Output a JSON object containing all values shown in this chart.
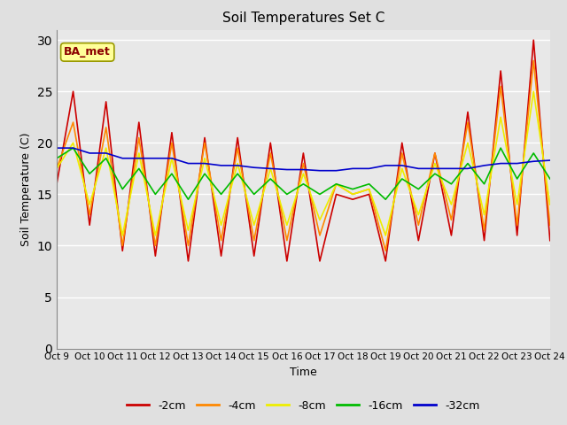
{
  "title": "Soil Temperatures Set C",
  "xlabel": "Time",
  "ylabel": "Soil Temperature (C)",
  "annotation": "BA_met",
  "ylim": [
    0,
    31
  ],
  "yticks": [
    0,
    5,
    10,
    15,
    20,
    25,
    30
  ],
  "xtick_labels": [
    "Oct 9",
    "Oct 10",
    "Oct 11",
    "Oct 12",
    "Oct 13",
    "Oct 14",
    "Oct 15",
    "Oct 16",
    "Oct 17",
    "Oct 18",
    "Oct 19",
    "Oct 20",
    "Oct 21",
    "Oct 22",
    "Oct 23",
    "Oct 24"
  ],
  "fig_bg_color": "#e0e0e0",
  "plot_bg_color": "#e8e8e8",
  "grid_color": "#ffffff",
  "colors": {
    "-2cm": "#cc0000",
    "-4cm": "#ff8800",
    "-8cm": "#eeee00",
    "-16cm": "#00bb00",
    "-32cm": "#0000cc"
  },
  "legend_labels": [
    "-2cm",
    "-4cm",
    "-8cm",
    "-16cm",
    "-32cm"
  ],
  "series": {
    "-2cm": [
      16,
      25,
      12,
      24,
      9.5,
      22,
      9,
      21,
      8.5,
      20.5,
      9,
      20.5,
      9,
      20,
      8.5,
      19,
      8.5,
      15,
      14.5,
      15,
      8.5,
      20,
      10.5,
      19,
      11,
      23,
      10.5,
      27,
      11,
      30,
      10.5
    ],
    "-4cm": [
      17.5,
      22,
      13,
      21.5,
      10,
      20.5,
      10,
      20,
      10,
      20,
      10.5,
      19.5,
      10.5,
      19,
      10.5,
      18,
      11,
      16,
      15,
      15.5,
      9.5,
      19,
      12,
      19,
      12.5,
      22,
      11.5,
      25.5,
      12,
      28,
      12
    ],
    "-8cm": [
      17.5,
      20,
      14,
      19.5,
      11,
      19,
      11,
      18.5,
      11.5,
      18.5,
      12,
      18,
      12,
      17.5,
      12,
      17,
      12.5,
      16,
      15,
      15.5,
      11,
      17.5,
      13,
      18,
      14,
      20,
      13,
      22.5,
      14,
      25,
      14
    ],
    "-16cm": [
      18.5,
      19.5,
      17,
      18.5,
      15.5,
      17.5,
      15,
      17,
      14.5,
      17,
      15,
      17,
      15,
      16.5,
      15,
      16,
      15,
      16,
      15.5,
      16,
      14.5,
      16.5,
      15.5,
      17,
      16,
      18,
      16,
      19.5,
      16.5,
      19,
      16.5
    ],
    "-32cm": [
      19.5,
      19.5,
      19,
      19,
      18.5,
      18.5,
      18.5,
      18.5,
      18,
      18,
      17.8,
      17.8,
      17.6,
      17.5,
      17.4,
      17.4,
      17.3,
      17.3,
      17.5,
      17.5,
      17.8,
      17.8,
      17.5,
      17.5,
      17.5,
      17.5,
      17.8,
      18,
      18,
      18.2,
      18.3
    ]
  }
}
